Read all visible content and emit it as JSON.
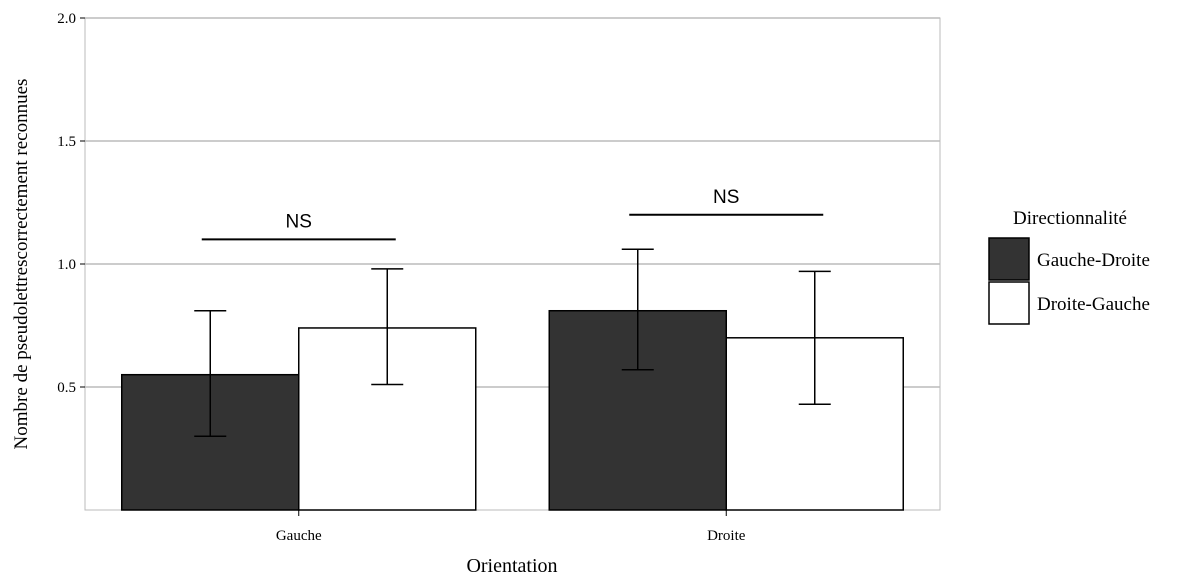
{
  "chart_data": {
    "type": "bar",
    "title": "",
    "xlabel": "Orientation",
    "ylabel": "Nombre de pseudolettrescorrectement reconnues",
    "ylim": [
      0,
      2.0
    ],
    "yticks": [
      0.5,
      1.0,
      1.5,
      2.0
    ],
    "ytick_labels": [
      "0.5",
      "1.0",
      "1.5",
      "2.0"
    ],
    "categories": [
      "Gauche",
      "Droite"
    ],
    "series": [
      {
        "name": "Gauche-Droite",
        "color": "#333333",
        "values": [
          0.55,
          0.81
        ],
        "error_low": [
          0.3,
          0.57
        ],
        "error_high": [
          0.81,
          1.06
        ]
      },
      {
        "name": "Droite-Gauche",
        "color": "#ffffff",
        "values": [
          0.74,
          0.7
        ],
        "error_low": [
          0.51,
          0.43
        ],
        "error_high": [
          0.98,
          0.97
        ]
      }
    ],
    "annotations": [
      {
        "category": 0,
        "text": "NS",
        "y": 1.1
      },
      {
        "category": 1,
        "text": "NS",
        "y": 1.2
      }
    ],
    "grid": true,
    "legend": {
      "title": "Directionnalité",
      "placement": "right"
    }
  }
}
